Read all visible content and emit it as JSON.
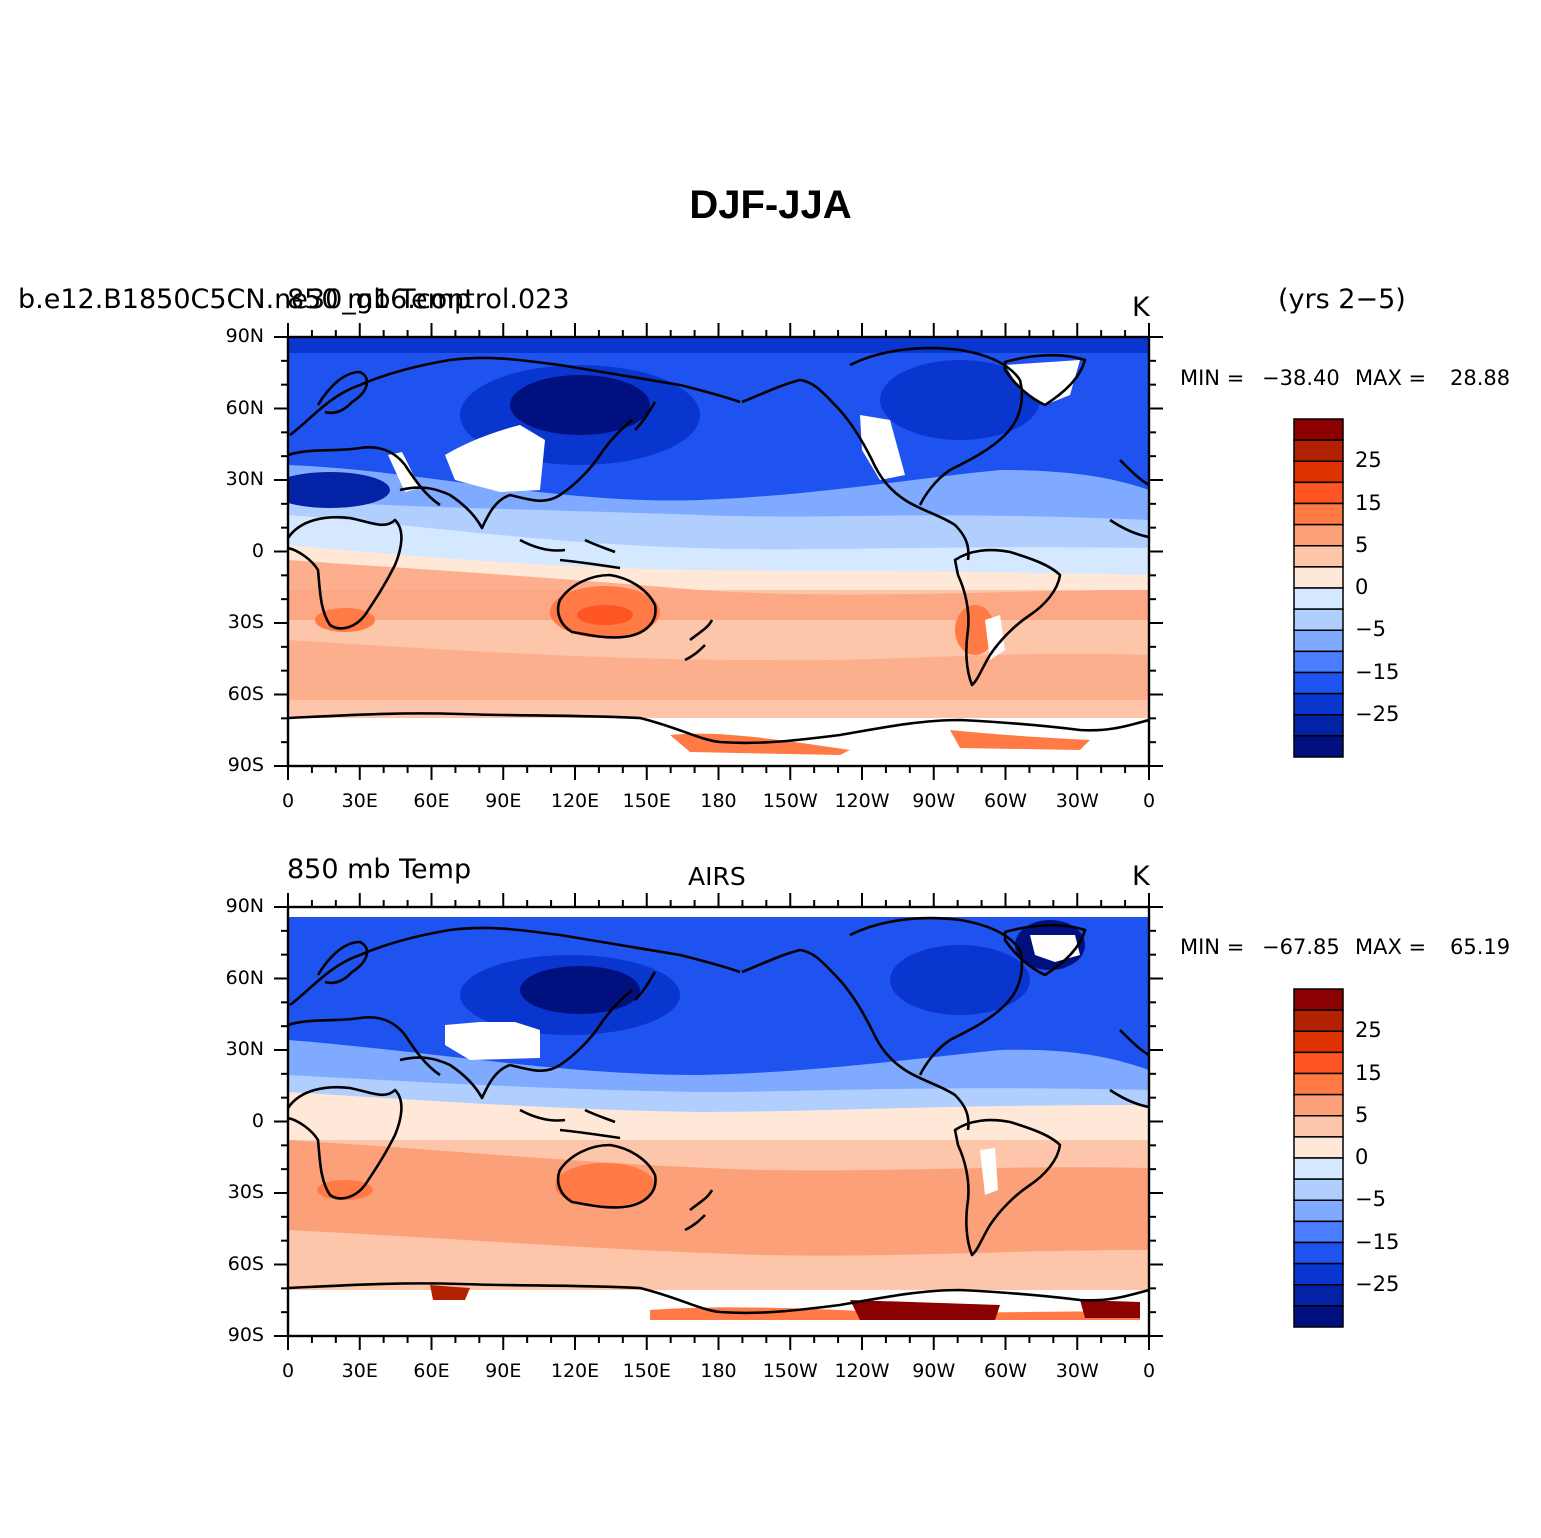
{
  "figure_title": "DJF-JJA",
  "panels": [
    {
      "left_title": "b.e12.B1850C5CN.ne30_g16.control.023",
      "left_overlay": "850 mb Temp",
      "center_title": "",
      "units": "K",
      "right_note": "(yrs 2−5)",
      "min_label": "MIN =",
      "min_value": "−38.40",
      "max_label": "MAX =",
      "max_value": "28.88"
    },
    {
      "left_title": "850 mb Temp",
      "left_overlay": "",
      "center_title": "AIRS",
      "units": "K",
      "right_note": "",
      "min_label": "MIN =",
      "min_value": "−67.85",
      "max_label": "MAX =",
      "max_value": "65.19"
    }
  ],
  "axes": {
    "lat_labels": [
      "90N",
      "60N",
      "30N",
      "0",
      "30S",
      "60S",
      "90S"
    ],
    "lon_labels": [
      "0",
      "30E",
      "60E",
      "90E",
      "120E",
      "150E",
      "180",
      "150W",
      "120W",
      "90W",
      "60W",
      "30W",
      "0"
    ]
  },
  "colorbar": {
    "labels": [
      "25",
      "15",
      "5",
      "0",
      "−5",
      "−15",
      "−25"
    ],
    "colors": [
      "#8b0000",
      "#b22200",
      "#dd3300",
      "#ff5522",
      "#ff7a45",
      "#fca07a",
      "#fdc6ab",
      "#ffe8d8",
      "#d4e8ff",
      "#b0cfff",
      "#80aaff",
      "#4a7dff",
      "#1f53f0",
      "#0a36d0",
      "#0422a6",
      "#00107e"
    ]
  },
  "colors": {
    "polar_blue": "#1f53f0",
    "ocean_warm": "#fdc6ab",
    "coast": "#000000"
  }
}
